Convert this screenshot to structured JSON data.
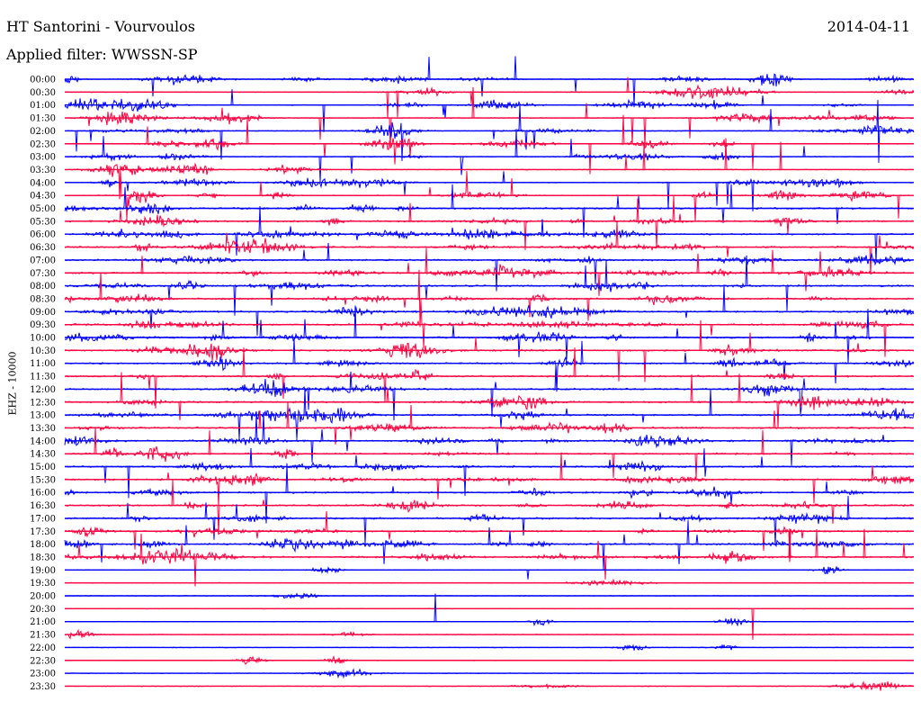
{
  "header": {
    "station": "HT Santorini - Vourvoulos",
    "date": "2014-04-11",
    "filter": "Applied filter: WWSSN-SP"
  },
  "chart_data": {
    "type": "line",
    "title": "HT Santorini - Vourvoulos",
    "ylabel": "EHZ - 10000",
    "ylim": [
      "00:00",
      "23:30"
    ],
    "grid": false,
    "colors": [
      "#0000ff",
      "#ff0040"
    ],
    "rows": [
      "00:00",
      "00:30",
      "01:00",
      "01:30",
      "02:00",
      "02:30",
      "03:00",
      "03:30",
      "04:00",
      "04:30",
      "05:00",
      "05:30",
      "06:00",
      "06:30",
      "07:00",
      "07:30",
      "08:00",
      "08:30",
      "09:00",
      "09:30",
      "10:00",
      "10:30",
      "11:00",
      "11:30",
      "12:00",
      "12:30",
      "13:00",
      "13:30",
      "14:00",
      "14:30",
      "15:00",
      "15:30",
      "16:00",
      "16:30",
      "17:00",
      "17:30",
      "18:00",
      "18:30",
      "19:00",
      "19:30",
      "20:00",
      "20:30",
      "21:00",
      "21:30",
      "22:00",
      "22:30",
      "23:00",
      "23:30"
    ]
  }
}
